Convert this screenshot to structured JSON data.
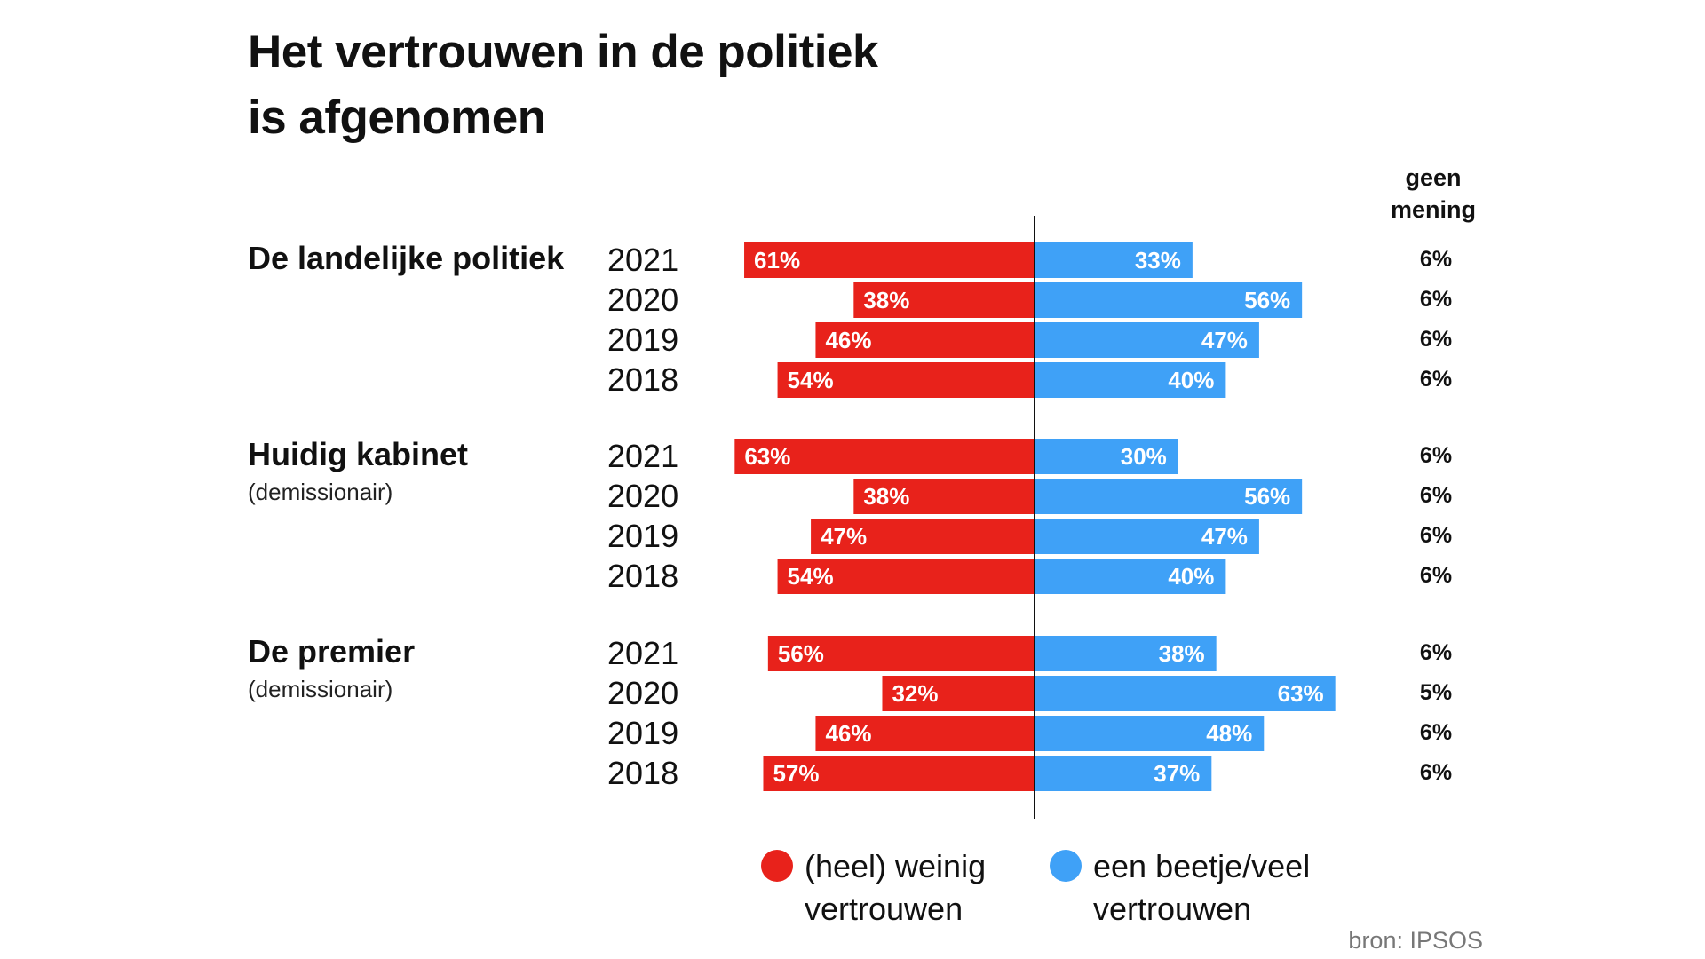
{
  "title": {
    "line1": "Het vertrouwen in de politiek",
    "line2": "is afgenomen"
  },
  "colors": {
    "low_trust": "#e8221b",
    "high_trust": "#3fa1f7",
    "axis": "#111111"
  },
  "no_opinion_header": [
    "geen",
    "mening"
  ],
  "source": "bron: IPSOS",
  "chart_data": {
    "type": "bar",
    "orientation": "horizontal",
    "stacking": "diverging",
    "unit": "%",
    "legend_position": "bottom",
    "grid": false,
    "series": [
      {
        "key": "weinig",
        "name": "(heel) weinig vertrouwen",
        "legend_lines": [
          "(heel) weinig",
          "vertrouwen"
        ],
        "color": "#e8221b"
      },
      {
        "key": "beetje",
        "name": "een beetje/veel vertrouwen",
        "legend_lines": [
          "een beetje/veel",
          "vertrouwen"
        ],
        "color": "#3fa1f7"
      }
    ],
    "groups": [
      {
        "name": "De landelijke politiek",
        "subtitle": "",
        "rows": [
          {
            "year": "2021",
            "weinig": 61,
            "beetje": 33,
            "geen_mening": 6
          },
          {
            "year": "2020",
            "weinig": 38,
            "beetje": 56,
            "geen_mening": 6
          },
          {
            "year": "2019",
            "weinig": 46,
            "beetje": 47,
            "geen_mening": 6
          },
          {
            "year": "2018",
            "weinig": 54,
            "beetje": 40,
            "geen_mening": 6
          }
        ]
      },
      {
        "name": "Huidig kabinet",
        "subtitle": "(demissionair)",
        "rows": [
          {
            "year": "2021",
            "weinig": 63,
            "beetje": 30,
            "geen_mening": 6
          },
          {
            "year": "2020",
            "weinig": 38,
            "beetje": 56,
            "geen_mening": 6
          },
          {
            "year": "2019",
            "weinig": 47,
            "beetje": 47,
            "geen_mening": 6
          },
          {
            "year": "2018",
            "weinig": 54,
            "beetje": 40,
            "geen_mening": 6
          }
        ]
      },
      {
        "name": "De premier",
        "subtitle": "(demissionair)",
        "rows": [
          {
            "year": "2021",
            "weinig": 56,
            "beetje": 38,
            "geen_mening": 6
          },
          {
            "year": "2020",
            "weinig": 32,
            "beetje": 63,
            "geen_mening": 5
          },
          {
            "year": "2019",
            "weinig": 46,
            "beetje": 48,
            "geen_mening": 6
          },
          {
            "year": "2018",
            "weinig": 57,
            "beetje": 37,
            "geen_mening": 6
          }
        ]
      }
    ]
  }
}
